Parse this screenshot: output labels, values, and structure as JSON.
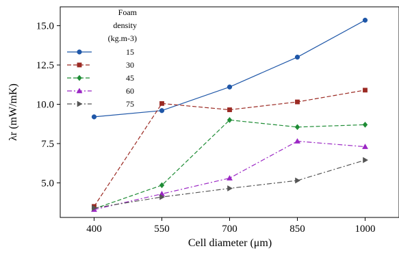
{
  "chart_data": {
    "type": "line",
    "xlabel": "Cell diameter (μm)",
    "ylabel": "λr (mW/mK)",
    "x": [
      400,
      550,
      700,
      850,
      1000
    ],
    "x_tick_labels": [
      "400",
      "550",
      "700",
      "850",
      "1000"
    ],
    "xlim": [
      325,
      1075
    ],
    "ylim": [
      2.8,
      16.2
    ],
    "y_ticks": [
      5.0,
      7.5,
      10.0,
      12.5,
      15.0
    ],
    "y_tick_labels": [
      "5.0",
      "7.5",
      "10.0",
      "12.5",
      "15.0"
    ],
    "grid": false,
    "legend": {
      "placement": "upper-left",
      "title_lines": [
        "Foam",
        "density",
        "(kg.m-3)"
      ]
    },
    "series": [
      {
        "name": "15",
        "values": [
          9.2,
          9.6,
          11.1,
          13.0,
          15.35
        ],
        "color": "#1f57a8",
        "marker": "circle",
        "dash": "solid"
      },
      {
        "name": "30",
        "values": [
          3.5,
          10.05,
          9.65,
          10.15,
          10.9
        ],
        "color": "#9b2a23",
        "marker": "square",
        "dash": "dashed"
      },
      {
        "name": "45",
        "values": [
          3.35,
          4.85,
          9.0,
          8.55,
          8.7
        ],
        "color": "#1e8c35",
        "marker": "diamond",
        "dash": "dashed"
      },
      {
        "name": "60",
        "values": [
          3.3,
          4.3,
          5.3,
          7.65,
          7.3
        ],
        "color": "#9b27c4",
        "marker": "triangle-up",
        "dash": "dashdot"
      },
      {
        "name": "75",
        "values": [
          3.4,
          4.1,
          4.65,
          5.15,
          6.45
        ],
        "color": "#555555",
        "marker": "triangle-right",
        "dash": "dashdot"
      }
    ]
  }
}
